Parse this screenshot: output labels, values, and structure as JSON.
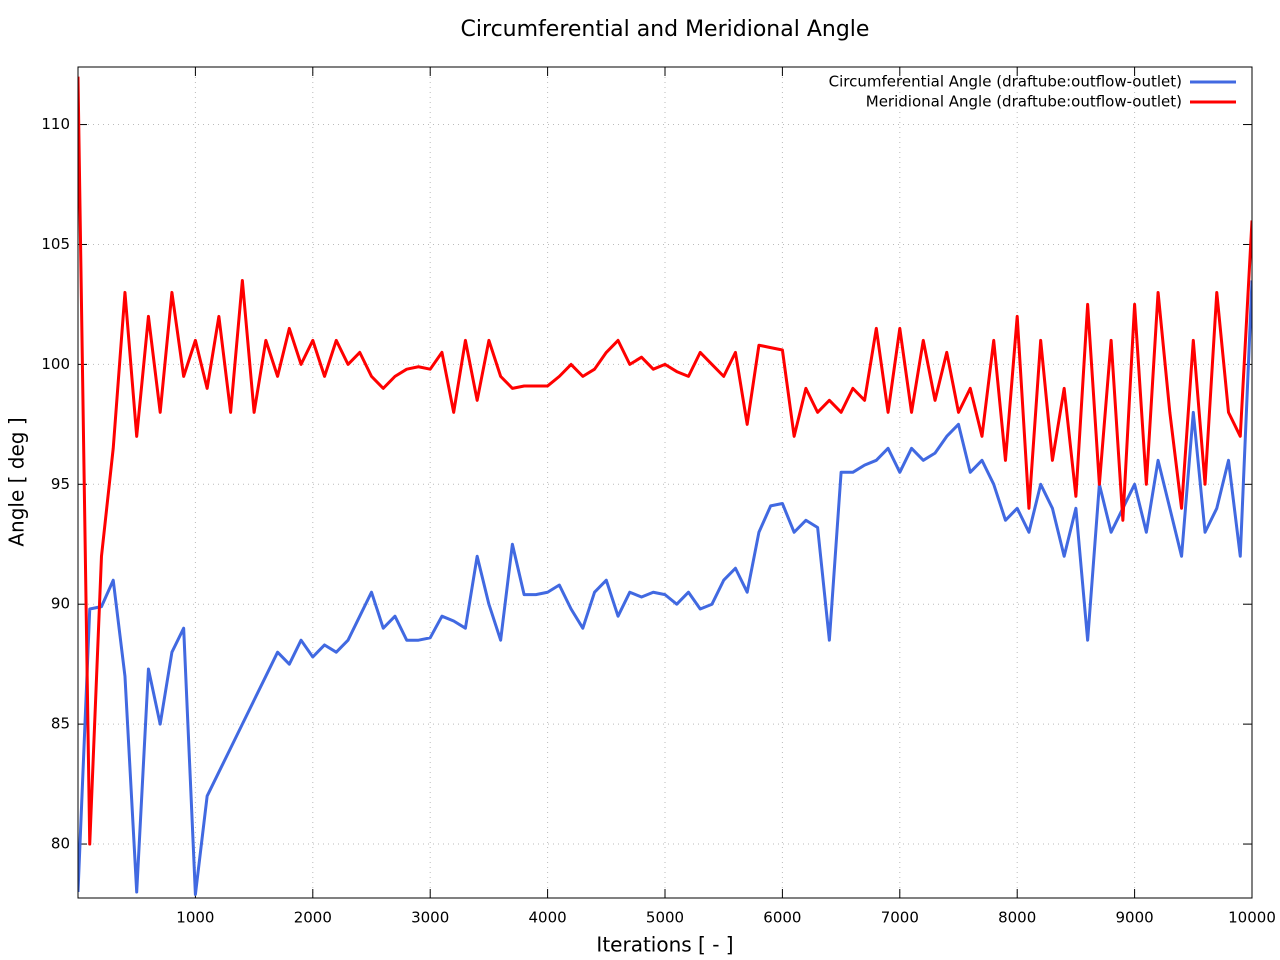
{
  "chart_data": {
    "type": "line",
    "title": "Circumferential and Meridional Angle",
    "xlabel": "Iterations [ - ]",
    "ylabel": "Angle [ deg ]",
    "x": [
      0,
      100,
      200,
      300,
      400,
      500,
      600,
      700,
      800,
      900,
      1000,
      1100,
      1200,
      1300,
      1400,
      1500,
      1600,
      1700,
      1800,
      1900,
      2000,
      2100,
      2200,
      2300,
      2400,
      2500,
      2600,
      2700,
      2800,
      2900,
      3000,
      3100,
      3200,
      3300,
      3400,
      3500,
      3600,
      3700,
      3800,
      3900,
      4000,
      4100,
      4200,
      4300,
      4400,
      4500,
      4600,
      4700,
      4800,
      4900,
      5000,
      5100,
      5200,
      5300,
      5400,
      5500,
      5600,
      5700,
      5800,
      5900,
      6000,
      6100,
      6200,
      6300,
      6400,
      6500,
      6600,
      6700,
      6800,
      6900,
      7000,
      7100,
      7200,
      7300,
      7400,
      7500,
      7600,
      7700,
      7800,
      7900,
      8000,
      8100,
      8200,
      8300,
      8400,
      8500,
      8600,
      8700,
      8800,
      8900,
      9000,
      9100,
      9200,
      9300,
      9400,
      9500,
      9600,
      9700,
      9800,
      9900,
      10000
    ],
    "series": [
      {
        "name": "Circumferential Angle (draftube:outflow-outlet)",
        "color": "#4169e1",
        "values": [
          78,
          89.8,
          89.9,
          91,
          87,
          78,
          87.3,
          85,
          88,
          89,
          77.9,
          82,
          83,
          84,
          85,
          86,
          87,
          88,
          87.5,
          88.5,
          87.8,
          88.3,
          88,
          88.5,
          89.5,
          90.5,
          89,
          89.5,
          88.5,
          88.5,
          88.6,
          89.5,
          89.3,
          89,
          92,
          90,
          88.5,
          92.5,
          90.4,
          90.4,
          90.5,
          90.8,
          89.8,
          89,
          90.5,
          91,
          89.5,
          90.5,
          90.3,
          90.5,
          90.4,
          90,
          90.5,
          89.8,
          90,
          91,
          91.5,
          90.5,
          93,
          94.1,
          94.2,
          93,
          93.5,
          93.2,
          88.5,
          95.5,
          95.5,
          95.8,
          96,
          96.5,
          95.5,
          96.5,
          96,
          96.3,
          97,
          97.5,
          95.5,
          96,
          95,
          93.5,
          94,
          93,
          95,
          94,
          92,
          94,
          88.5,
          95,
          93,
          94,
          95,
          93,
          96,
          94,
          92,
          98,
          93,
          94,
          96,
          92,
          103.5
        ]
      },
      {
        "name": "Meridional Angle (draftube:outflow-outlet)",
        "color": "#ff0000",
        "values": [
          112,
          80,
          92,
          96.5,
          103,
          97,
          102,
          98,
          103,
          99.5,
          101,
          99,
          102,
          98,
          103.5,
          98,
          101,
          99.5,
          101.5,
          100,
          101,
          99.5,
          101,
          100,
          100.5,
          99.5,
          99,
          99.5,
          99.8,
          99.9,
          99.8,
          100.5,
          98,
          101,
          98.5,
          101,
          99.5,
          99,
          99.1,
          99.1,
          99.1,
          99.5,
          100,
          99.5,
          99.8,
          100.5,
          101,
          100,
          100.3,
          99.8,
          100,
          99.7,
          99.5,
          100.5,
          100,
          99.5,
          100.5,
          97.5,
          100.8,
          100.7,
          100.6,
          97,
          99,
          98,
          98.5,
          98,
          99,
          98.5,
          101.5,
          98,
          101.5,
          98,
          101,
          98.5,
          100.5,
          98,
          99,
          97,
          101,
          96,
          102,
          94,
          101,
          96,
          99,
          94.5,
          102.5,
          95,
          101,
          93.5,
          102.5,
          95,
          103,
          98,
          94,
          101,
          95,
          103,
          98,
          97,
          106
        ]
      }
    ],
    "xlim": [
      0,
      10000
    ],
    "xticks": [
      1000,
      2000,
      3000,
      4000,
      5000,
      6000,
      7000,
      8000,
      9000,
      10000
    ],
    "ylim": [
      77.75,
      112.4
    ],
    "yticks": [
      80,
      85,
      90,
      95,
      100,
      105,
      110
    ],
    "grid": true,
    "legend": "upper right"
  }
}
